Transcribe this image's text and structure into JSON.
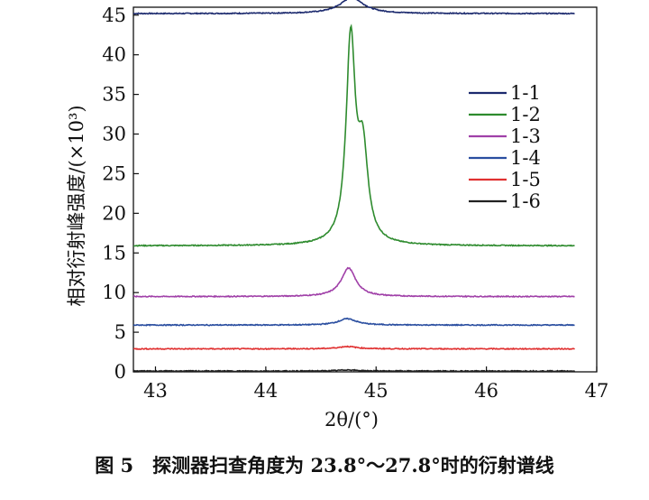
{
  "caption": "图 5　探测器扫查角度为 23.8°～27.8°时的衍射谱线",
  "chart_data": {
    "type": "line",
    "xlabel": "2θ/(°)",
    "ylabel": "相对衍射峰强度/(×10³)",
    "xlim": [
      42.8,
      47
    ],
    "ylim": [
      0,
      46
    ],
    "xticks": [
      43,
      44,
      45,
      46,
      47
    ],
    "yticks": [
      0,
      5,
      10,
      15,
      20,
      25,
      30,
      35,
      40,
      45
    ],
    "grid": false,
    "legend_position": "right",
    "series": [
      {
        "name": "1-1",
        "color": "#1c2a6e",
        "baseline": 45.2,
        "x_end": 46.8,
        "peaks": [
          {
            "center": 44.78,
            "height": 2.0,
            "width": 0.13
          }
        ]
      },
      {
        "name": "1-2",
        "color": "#2e8b2e",
        "baseline": 15.9,
        "x_end": 46.8,
        "peaks": [
          {
            "center": 44.77,
            "height": 25.5,
            "width": 0.05
          },
          {
            "center": 44.88,
            "height": 11.0,
            "width": 0.055
          }
        ]
      },
      {
        "name": "1-3",
        "color": "#a040a8",
        "baseline": 9.5,
        "x_end": 46.8,
        "peaks": [
          {
            "center": 44.75,
            "height": 3.6,
            "width": 0.08
          }
        ]
      },
      {
        "name": "1-4",
        "color": "#2a4ea0",
        "baseline": 5.9,
        "x_end": 46.8,
        "peaks": [
          {
            "center": 44.74,
            "height": 0.8,
            "width": 0.1
          }
        ]
      },
      {
        "name": "1-5",
        "color": "#e03030",
        "baseline": 2.9,
        "x_end": 46.8,
        "peaks": [
          {
            "center": 44.74,
            "height": 0.3,
            "width": 0.1
          }
        ]
      },
      {
        "name": "1-6",
        "color": "#222222",
        "baseline": 0.1,
        "x_end": 46.8,
        "peaks": [
          {
            "center": 44.74,
            "height": 0.15,
            "width": 0.1
          }
        ]
      }
    ]
  }
}
